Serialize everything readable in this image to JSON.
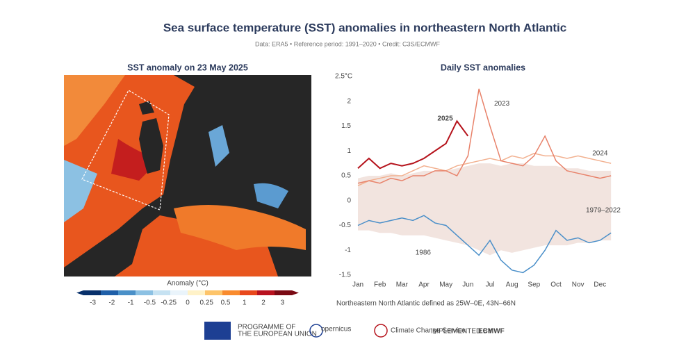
{
  "header": {
    "title": "Sea surface temperature (SST) anomalies in northeastern North Atlantic",
    "subtitle": "Data: ERA5 • Reference period: 1991–2020 • Credit: C3S/ECMWF"
  },
  "map": {
    "title": "SST anomaly on 23 May 2025"
  },
  "colorbar": {
    "title": "Anomaly (°C)",
    "ticks": [
      -3,
      -2,
      -1,
      -0.5,
      -0.25,
      0,
      0.25,
      0.5,
      1,
      2,
      3
    ],
    "colors": [
      "#08306b",
      "#1f5fa8",
      "#4a90c8",
      "#8cc1e3",
      "#c6e2f2",
      "#eaf4fb",
      "#fff2c8",
      "#fdc46a",
      "#f98b2e",
      "#e8481c",
      "#b8121f",
      "#7a0a14"
    ]
  },
  "chart_data": {
    "type": "line",
    "title": "Daily SST anomalies",
    "categories": [
      "Jan",
      null,
      "Feb",
      null,
      "Mar",
      null,
      "Apr",
      null,
      "May",
      null,
      "Jun",
      null,
      "Jul",
      null,
      "Aug",
      null,
      "Sep",
      null,
      "Oct",
      null,
      "Nov",
      null,
      "Dec",
      null
    ],
    "ylim": [
      -1.5,
      2.5
    ],
    "yticks": [
      {
        "value": 2.5,
        "label": "2.5°C"
      },
      2,
      1.5,
      1,
      0.5,
      0,
      -0.5,
      -1,
      -1.5
    ],
    "grid": false,
    "band": {
      "label": "1979–2022",
      "color": "#ecd8d2",
      "upper": [
        0.45,
        0.5,
        0.5,
        0.55,
        0.5,
        0.55,
        0.6,
        0.6,
        0.6,
        0.65,
        0.7,
        0.75,
        0.75,
        0.7,
        0.75,
        0.75,
        0.7,
        0.7,
        0.7,
        0.65,
        0.65,
        0.6,
        0.6,
        0.6
      ],
      "lower": [
        -0.6,
        -0.6,
        -0.65,
        -0.65,
        -0.7,
        -0.7,
        -0.7,
        -0.75,
        -0.8,
        -0.85,
        -0.9,
        -1.0,
        -1.1,
        -1.0,
        -1.05,
        -1.0,
        -0.95,
        -0.9,
        -0.9,
        -0.9,
        -0.85,
        -0.85,
        -0.8,
        -0.8
      ]
    },
    "series": [
      {
        "name": "1986",
        "color": "#4a8fc9",
        "values": [
          -0.5,
          -0.4,
          -0.45,
          -0.4,
          -0.35,
          -0.4,
          -0.3,
          -0.45,
          -0.5,
          -0.7,
          -0.9,
          -1.1,
          -0.8,
          -1.2,
          -1.4,
          -1.45,
          -1.3,
          -1.0,
          -0.6,
          -0.8,
          -0.75,
          -0.85,
          -0.8,
          -0.65
        ]
      },
      {
        "name": "2024",
        "color": "#f2b08f",
        "values": [
          0.3,
          0.4,
          0.45,
          0.5,
          0.5,
          0.6,
          0.7,
          0.65,
          0.6,
          0.7,
          0.75,
          0.8,
          0.85,
          0.8,
          0.9,
          0.85,
          0.95,
          0.9,
          0.9,
          0.85,
          0.9,
          0.85,
          0.8,
          0.75
        ]
      },
      {
        "name": "2023",
        "color": "#e8826a",
        "values": [
          0.35,
          0.4,
          0.35,
          0.45,
          0.4,
          0.5,
          0.5,
          0.6,
          0.6,
          0.5,
          0.9,
          2.25,
          1.5,
          0.8,
          0.75,
          0.7,
          0.9,
          1.3,
          0.8,
          0.6,
          0.55,
          0.5,
          0.45,
          0.5
        ]
      },
      {
        "name": "2025",
        "color": "#b5121b",
        "values": [
          0.65,
          0.85,
          0.65,
          0.75,
          0.7,
          0.75,
          0.85,
          1.0,
          1.15,
          1.6,
          1.3,
          null,
          null,
          null,
          null,
          null,
          null,
          null,
          null,
          null,
          null,
          null,
          null,
          null
        ]
      }
    ]
  },
  "footer": {
    "note": "Northeastern North Atlantic defined as 25W–0E, 43N–66N",
    "eu": "PROGRAMME OF",
    "eu2": "THE EUROPEAN UNION",
    "copernicus": "opernicus",
    "c3s": "Climate Change Service",
    "impl": "IMPLEMENTED BY",
    "ecmwf": "ECMWF"
  }
}
